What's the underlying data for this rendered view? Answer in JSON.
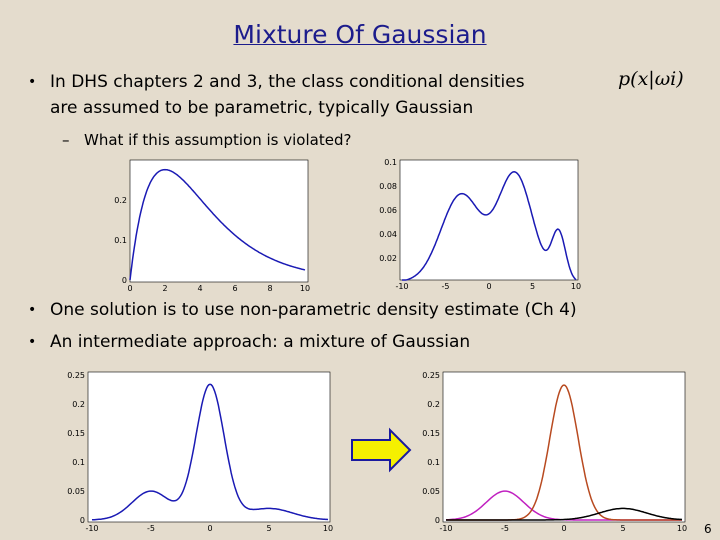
{
  "title": "Mixture Of Gaussian",
  "bullets": [
    {
      "line1": "In DHS chapters 2 and 3, the class conditional densities",
      "formula": "p(x|ωi)",
      "line2": "are assumed to be parametric, typically Gaussian",
      "sub": "What if this assumption is violated?"
    },
    {
      "line1": "One solution is to use non-parametric density estimate (Ch 4)"
    },
    {
      "line1": "An intermediate approach: a mixture of Gaussian"
    }
  ],
  "plots": [
    {
      "xticks": [
        "0",
        "2",
        "4",
        "6",
        "8",
        "10"
      ],
      "yticks": [
        "0",
        "0.1",
        "0.2"
      ]
    },
    {
      "xticks": [
        "-10",
        "-5",
        "0",
        "5",
        "10"
      ],
      "yticks": [
        "0.02",
        "0.04",
        "0.06",
        "0.08",
        "0.1"
      ]
    },
    {
      "xticks": [
        "-10",
        "-5",
        "0",
        "5",
        "10"
      ],
      "yticks": [
        "0",
        "0.05",
        "0.1",
        "0.15",
        "0.2",
        "0.25"
      ]
    },
    {
      "xticks": [
        "-10",
        "-5",
        "0",
        "5",
        "10"
      ],
      "yticks": [
        "0",
        "0.05",
        "0.1",
        "0.15",
        "0.2",
        "0.25"
      ]
    }
  ],
  "page_number": "6"
}
